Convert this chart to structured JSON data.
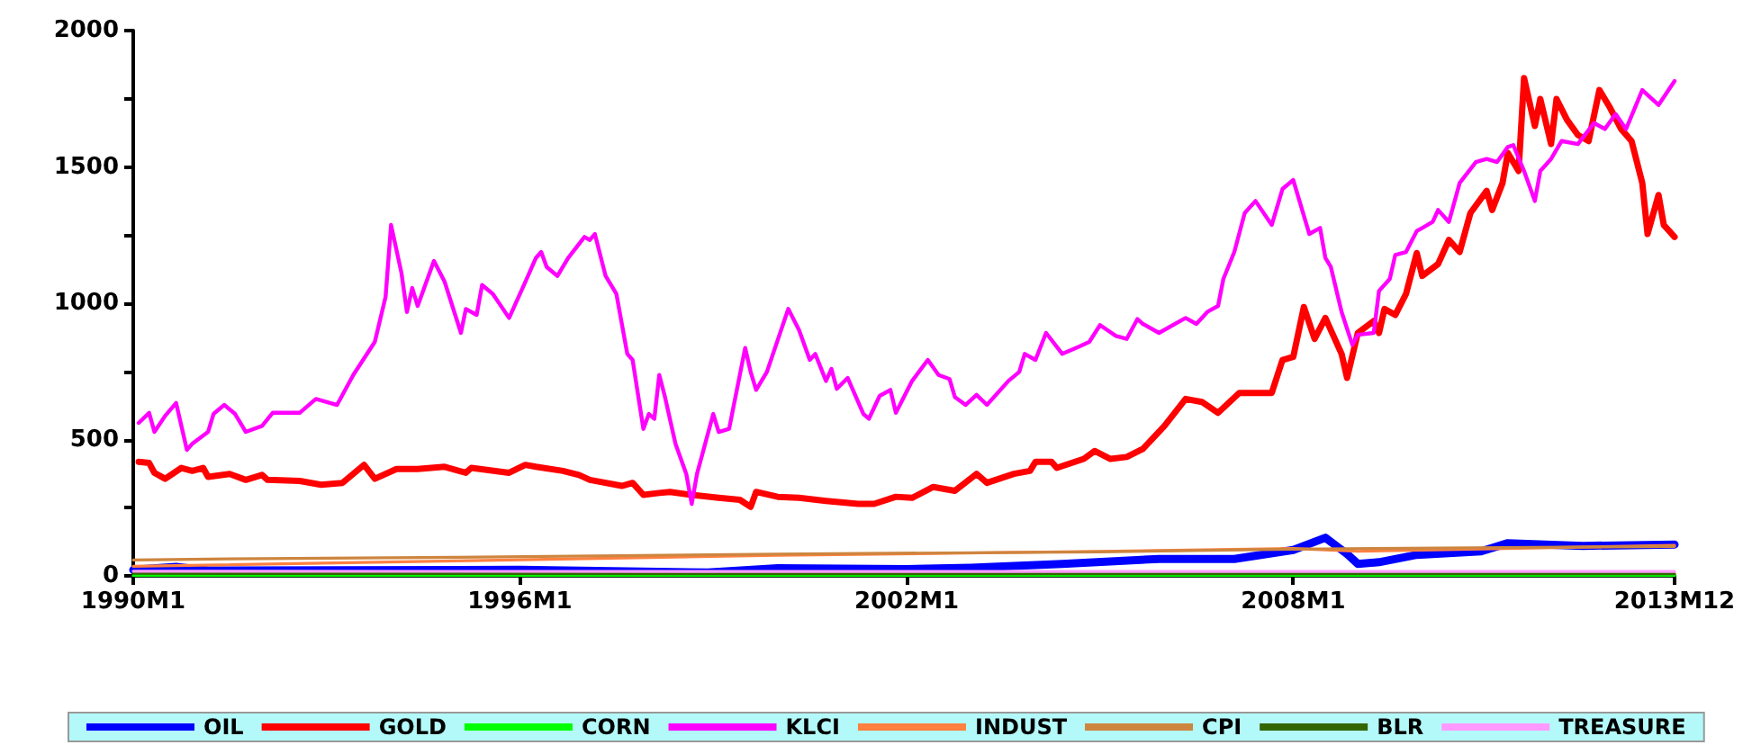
{
  "chart_data": {
    "type": "line",
    "xlim": [
      "1990-01",
      "2013-12"
    ],
    "xticks": [
      {
        "value": "1990-01",
        "label": "1990M1"
      },
      {
        "value": "1996-01",
        "label": "1996M1"
      },
      {
        "value": "2002-01",
        "label": "2002M1"
      },
      {
        "value": "2008-01",
        "label": "2008M1"
      },
      {
        "value": "2013-12",
        "label": "2013M12"
      }
    ],
    "ylim": [
      0,
      2000
    ],
    "yticks": [
      0,
      {
        "value": 250,
        "label": null
      },
      500,
      {
        "value": 750,
        "label": null
      },
      1000,
      {
        "value": 1250,
        "label": null
      },
      1500,
      {
        "value": 1750,
        "label": null
      },
      2000
    ],
    "grid": false,
    "legend": "bottom",
    "marker": "none",
    "line_style": "solid",
    "series": [
      {
        "name": "OIL",
        "color": "#0000ff",
        "x": [
          "1990-01",
          "1990-09",
          "1991-03",
          "1996-01",
          "1998-12",
          "2000-01",
          "2002-01",
          "2003-01",
          "2004-06",
          "2005-12",
          "2007-02",
          "2008-01",
          "2008-07",
          "2008-11",
          "2009-01",
          "2009-05",
          "2009-12",
          "2010-12",
          "2011-05",
          "2012-07",
          "2013-12"
        ],
        "values": [
          22,
          33,
          20,
          22,
          12,
          28,
          25,
          30,
          44,
          62,
          62,
          95,
          140,
          80,
          44,
          50,
          77,
          90,
          120,
          110,
          115
        ]
      },
      {
        "name": "GOLD",
        "color": "#ff0000",
        "x": [
          "1990-02",
          "1990-04",
          "1990-05",
          "1990-07",
          "1990-10",
          "1990-12",
          "1991-02",
          "1991-03",
          "1991-07",
          "1991-10",
          "1992-01",
          "1992-02",
          "1992-08",
          "1992-12",
          "1993-04",
          "1993-08",
          "1993-10",
          "1994-02",
          "1994-06",
          "1994-11",
          "1995-03",
          "1995-04",
          "1995-11",
          "1996-02",
          "1996-04",
          "1996-09",
          "1996-12",
          "1997-02",
          "1997-08",
          "1997-10",
          "1997-12",
          "1998-03",
          "1998-05",
          "1998-09",
          "1999-02",
          "1999-06",
          "1999-08",
          "1999-09",
          "2000-01",
          "2000-05",
          "2000-10",
          "2001-04",
          "2001-07",
          "2001-11",
          "2002-02",
          "2002-06",
          "2002-10",
          "2003-02",
          "2003-04",
          "2003-09",
          "2003-12",
          "2004-01",
          "2004-04",
          "2004-05",
          "2004-10",
          "2004-12",
          "2005-03",
          "2005-06",
          "2005-09",
          "2006-01",
          "2006-05",
          "2006-08",
          "2006-11",
          "2007-03",
          "2007-05",
          "2007-09",
          "2007-11",
          "2008-01",
          "2008-03",
          "2008-05",
          "2008-07",
          "2008-10",
          "2008-11",
          "2009-01",
          "2009-04",
          "2009-05",
          "2009-06",
          "2009-08",
          "2009-10",
          "2009-12",
          "2010-01",
          "2010-04",
          "2010-06",
          "2010-08",
          "2010-10",
          "2011-01",
          "2011-02",
          "2011-04",
          "2011-05",
          "2011-07",
          "2011-08",
          "2011-10",
          "2011-11",
          "2012-01",
          "2012-02",
          "2012-04",
          "2012-06",
          "2012-08",
          "2012-10",
          "2012-12",
          "2013-02",
          "2013-04",
          "2013-06",
          "2013-07",
          "2013-09",
          "2013-10",
          "2013-12"
        ],
        "values": [
          418,
          414,
          378,
          356,
          396,
          385,
          396,
          363,
          374,
          352,
          370,
          352,
          348,
          334,
          341,
          407,
          356,
          392,
          392,
          400,
          378,
          396,
          378,
          407,
          400,
          385,
          370,
          352,
          330,
          341,
          297,
          304,
          308,
          297,
          286,
          279,
          253,
          308,
          290,
          286,
          275,
          264,
          264,
          290,
          286,
          326,
          312,
          374,
          341,
          374,
          385,
          418,
          418,
          396,
          429,
          458,
          429,
          436,
          466,
          550,
          649,
          638,
          598,
          671,
          671,
          671,
          792,
          803,
          986,
          869,
          946,
          814,
          726,
          891,
          935,
          891,
          979,
          957,
          1034,
          1184,
          1100,
          1144,
          1232,
          1188,
          1331,
          1412,
          1342,
          1441,
          1551,
          1485,
          1826,
          1650,
          1749,
          1584,
          1749,
          1672,
          1617,
          1595,
          1782,
          1716,
          1639,
          1595,
          1441,
          1254,
          1397,
          1287,
          1243
        ]
      },
      {
        "name": "CORN",
        "color": "#00ff00",
        "x": [
          "1990-01",
          "2000-01",
          "2008-01",
          "2013-12"
        ],
        "values": [
          1,
          1,
          1,
          1
        ]
      },
      {
        "name": "KLCI",
        "color": "#ff00ff",
        "x": [
          "1990-02",
          "1990-04",
          "1990-05",
          "1990-07",
          "1990-09",
          "1990-11",
          "1990-12",
          "1991-03",
          "1991-04",
          "1991-06",
          "1991-08",
          "1991-10",
          "1992-01",
          "1992-03",
          "1992-08",
          "1992-11",
          "1993-03",
          "1993-06",
          "1993-10",
          "1993-12",
          "1994-01",
          "1994-03",
          "1994-04",
          "1994-05",
          "1994-06",
          "1994-09",
          "1994-11",
          "1995-02",
          "1995-03",
          "1995-05",
          "1995-06",
          "1995-08",
          "1995-11",
          "1996-02",
          "1996-04",
          "1996-05",
          "1996-06",
          "1996-08",
          "1996-10",
          "1997-01",
          "1997-02",
          "1997-03",
          "1997-05",
          "1997-07",
          "1997-09",
          "1997-10",
          "1997-12",
          "1998-01",
          "1998-02",
          "1998-03",
          "1998-04",
          "1998-06",
          "1998-08",
          "1998-09",
          "1998-10",
          "1999-01",
          "1999-02",
          "1999-04",
          "1999-07",
          "1999-08",
          "1999-09",
          "1999-11",
          "2000-03",
          "2000-05",
          "2000-07",
          "2000-08",
          "2000-10",
          "2000-11",
          "2000-12",
          "2001-02",
          "2001-05",
          "2001-06",
          "2001-08",
          "2001-10",
          "2001-11",
          "2002-02",
          "2002-05",
          "2002-07",
          "2002-09",
          "2002-10",
          "2002-12",
          "2003-02",
          "2003-04",
          "2003-08",
          "2003-10",
          "2003-11",
          "2004-01",
          "2004-03",
          "2004-06",
          "2004-09",
          "2004-11",
          "2005-01",
          "2005-02",
          "2005-04",
          "2005-06",
          "2005-08",
          "2005-09",
          "2005-12",
          "2006-05",
          "2006-07",
          "2006-09",
          "2006-11",
          "2006-12",
          "2007-02",
          "2007-04",
          "2007-06",
          "2007-09",
          "2007-11",
          "2008-01",
          "2008-04",
          "2008-06",
          "2008-07",
          "2008-08",
          "2008-10",
          "2008-12",
          "2009-01",
          "2009-04",
          "2009-05",
          "2009-07",
          "2009-08",
          "2009-10",
          "2009-12",
          "2010-01",
          "2010-03",
          "2010-04",
          "2010-06",
          "2010-08",
          "2010-11",
          "2011-01",
          "2011-03",
          "2011-05",
          "2011-06",
          "2011-08",
          "2011-10",
          "2011-11",
          "2012-01",
          "2012-03",
          "2012-06",
          "2012-09",
          "2012-11",
          "2013-01",
          "2013-03",
          "2013-06",
          "2013-09",
          "2013-12"
        ],
        "values": [
          561,
          598,
          528,
          587,
          634,
          462,
          484,
          528,
          594,
          627,
          594,
          528,
          550,
          598,
          598,
          649,
          627,
          737,
          858,
          1023,
          1287,
          1111,
          968,
          1056,
          990,
          1155,
          1078,
          891,
          979,
          957,
          1067,
          1034,
          946,
          1078,
          1166,
          1188,
          1133,
          1100,
          1166,
          1243,
          1232,
          1254,
          1100,
          1034,
          814,
          792,
          539,
          594,
          576,
          737,
          660,
          484,
          374,
          264,
          374,
          594,
          528,
          539,
          836,
          748,
          682,
          748,
          979,
          902,
          792,
          814,
          715,
          759,
          686,
          726,
          594,
          576,
          660,
          682,
          598,
          715,
          792,
          737,
          722,
          656,
          627,
          664,
          627,
          715,
          748,
          814,
          792,
          891,
          814,
          840,
          858,
          920,
          906,
          880,
          869,
          942,
          924,
          891,
          946,
          924,
          968,
          990,
          1089,
          1188,
          1331,
          1375,
          1287,
          1419,
          1452,
          1254,
          1276,
          1166,
          1133,
          968,
          847,
          884,
          891,
          1045,
          1089,
          1177,
          1188,
          1265,
          1276,
          1298,
          1342,
          1298,
          1441,
          1518,
          1529,
          1518,
          1573,
          1580,
          1485,
          1375,
          1485,
          1529,
          1595,
          1584,
          1661,
          1639,
          1694,
          1639,
          1782,
          1727,
          1815
        ]
      },
      {
        "name": "INDUST",
        "color": "#ff8040",
        "x": [
          "1990-01",
          "1995-01",
          "2000-01",
          "2005-01",
          "2008-01",
          "2009-01",
          "2013-12"
        ],
        "values": [
          35,
          55,
          75,
          90,
          100,
          90,
          112
        ]
      },
      {
        "name": "CPI",
        "color": "#cd853f",
        "x": [
          "1990-01",
          "1991-07",
          "1995-01",
          "2000-01",
          "2005-01",
          "2008-01",
          "2013-12"
        ],
        "values": [
          58,
          62,
          68,
          80,
          88,
          98,
          108
        ]
      },
      {
        "name": "BLR",
        "color": "#336600",
        "x": [
          "1990-01",
          "2000-01",
          "2013-12"
        ],
        "values": [
          9,
          8,
          8
        ]
      },
      {
        "name": "TREASURE",
        "color": "#ff99ff",
        "x": [
          "1990-01",
          "2000-01",
          "2013-12"
        ],
        "values": [
          17,
          16,
          16
        ]
      }
    ]
  }
}
